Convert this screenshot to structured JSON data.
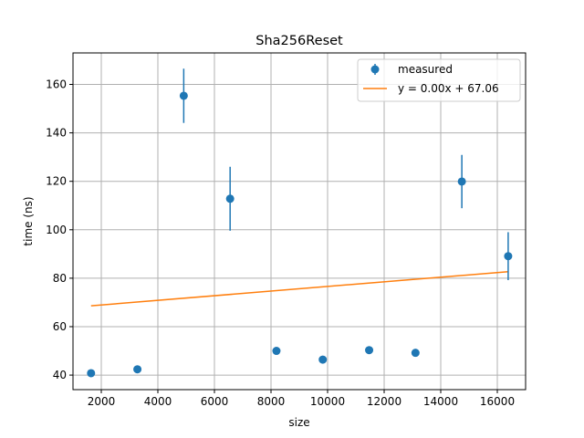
{
  "chart_data": {
    "type": "scatter",
    "title": "Sha256Reset",
    "xlabel": "size",
    "ylabel": "time (ns)",
    "xlim": [
      1000,
      17000
    ],
    "ylim": [
      34,
      173
    ],
    "xticks": [
      2000,
      4000,
      6000,
      8000,
      10000,
      12000,
      14000,
      16000
    ],
    "yticks": [
      40,
      60,
      80,
      100,
      120,
      140,
      160
    ],
    "grid": true,
    "legend_position": "top-right",
    "series": [
      {
        "name": "measured",
        "kind": "errorbar",
        "color": "#1f77b4",
        "x": [
          1638,
          3277,
          4915,
          6554,
          8192,
          9830,
          11469,
          13107,
          14746,
          16384
        ],
        "y": [
          40.8,
          42.4,
          155.3,
          112.8,
          50.0,
          46.4,
          50.3,
          49.2,
          119.9,
          89.1
        ],
        "yerr": [
          0,
          0,
          11.2,
          13.2,
          0,
          0,
          0,
          0,
          11.0,
          9.9
        ]
      },
      {
        "name": "y = 0.00x + 67.06",
        "kind": "line",
        "color": "#ff7f0e",
        "x": [
          1638,
          16384
        ],
        "y": [
          68.6,
          82.7
        ]
      }
    ]
  }
}
